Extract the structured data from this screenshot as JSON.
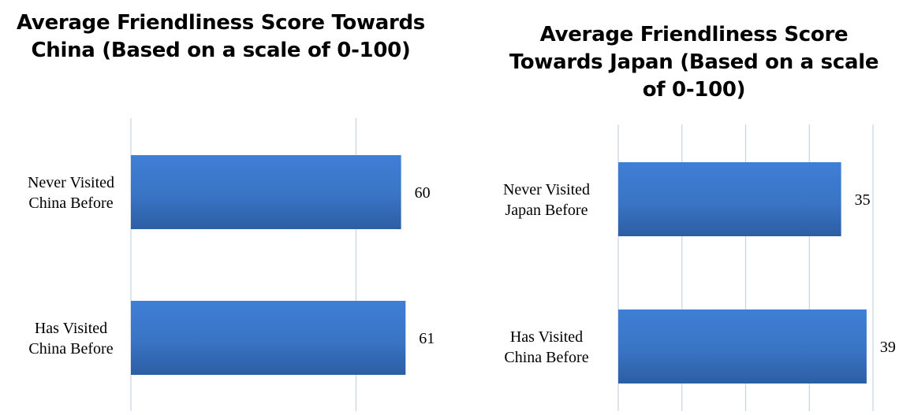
{
  "chart_data": [
    {
      "type": "bar",
      "orientation": "horizontal",
      "title": "Average Friendliness Score Towards China (Based on a scale of 0-100)",
      "categories": [
        "Never Visited China Before",
        "Has Visited China Before"
      ],
      "values": [
        60,
        61
      ],
      "xlim": [
        0,
        100
      ],
      "grid": true,
      "bar_color": "#3a74c4"
    },
    {
      "type": "bar",
      "orientation": "horizontal",
      "title": "Average Friendliness Score Towards Japan (Based on a scale of 0-100)",
      "categories": [
        "Never Visited Japan Before",
        "Has Visited China Before"
      ],
      "values": [
        35,
        39
      ],
      "xlim": [
        0,
        40
      ],
      "grid": true,
      "bar_color": "#3a74c4"
    }
  ]
}
